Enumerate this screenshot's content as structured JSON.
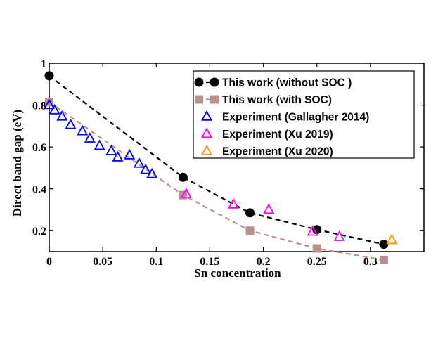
{
  "chart_data": {
    "type": "scatter",
    "xlabel": "Sn concentration",
    "ylabel": "Direct band gap (eV)",
    "xlim": [
      0,
      0.35
    ],
    "ylim": [
      0.1,
      1.0
    ],
    "x_ticks": [
      0,
      0.05,
      0.1,
      0.15,
      0.2,
      0.25,
      0.3
    ],
    "x_tick_labels": [
      "0",
      "0.05",
      "0.1",
      "0.15",
      "0.2",
      "0.25",
      "0.3"
    ],
    "y_ticks": [
      0.2,
      0.4,
      0.6,
      0.8,
      1.0
    ],
    "y_tick_labels": [
      "0.2",
      "0.4",
      "0.6",
      "0.8",
      "1"
    ],
    "legend_position": "top-right",
    "grid": false,
    "series": [
      {
        "name": "This work (without SOC )",
        "marker": "circle",
        "line": "dashed",
        "color": "#000000",
        "points": [
          [
            0,
            0.94
          ],
          [
            0.125,
            0.455
          ],
          [
            0.1875,
            0.285
          ],
          [
            0.25,
            0.205
          ],
          [
            0.3125,
            0.135
          ]
        ]
      },
      {
        "name": "This work (with SOC)",
        "marker": "square",
        "line": "dashed",
        "color": "#bc8f8f",
        "points": [
          [
            0,
            0.815
          ],
          [
            0.125,
            0.37
          ],
          [
            0.1875,
            0.2
          ],
          [
            0.25,
            0.115
          ],
          [
            0.3125,
            0.06
          ]
        ]
      },
      {
        "name": "Experiment (Gallagher 2014)",
        "marker": "triangle",
        "line": "none",
        "color": "#0000ff",
        "points": [
          [
            0.0,
            0.8
          ],
          [
            0.005,
            0.775
          ],
          [
            0.012,
            0.745
          ],
          [
            0.02,
            0.705
          ],
          [
            0.031,
            0.675
          ],
          [
            0.038,
            0.64
          ],
          [
            0.047,
            0.605
          ],
          [
            0.058,
            0.58
          ],
          [
            0.064,
            0.55
          ],
          [
            0.075,
            0.56
          ],
          [
            0.084,
            0.52
          ],
          [
            0.09,
            0.49
          ],
          [
            0.096,
            0.47
          ]
        ]
      },
      {
        "name": "Experiment (Xu 2019)",
        "marker": "triangle",
        "line": "none",
        "color": "#ff00ff",
        "points": [
          [
            0.128,
            0.375
          ],
          [
            0.172,
            0.325
          ],
          [
            0.205,
            0.3
          ],
          [
            0.246,
            0.195
          ],
          [
            0.271,
            0.17
          ]
        ]
      },
      {
        "name": "Experiment (Xu 2020)",
        "marker": "triangle",
        "line": "none",
        "color": "#ff9900",
        "points": [
          [
            0.32,
            0.155
          ]
        ]
      }
    ]
  }
}
